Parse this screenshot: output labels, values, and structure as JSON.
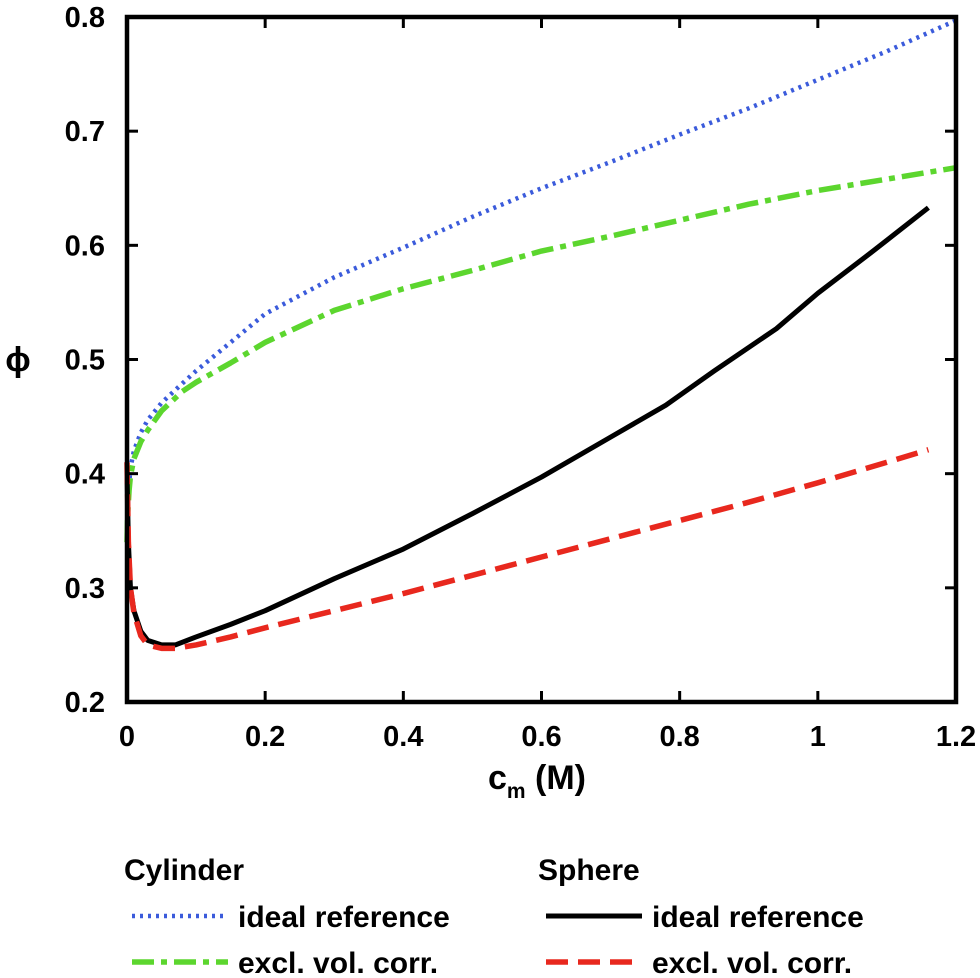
{
  "chart_data": {
    "type": "line",
    "title": "",
    "xlabel": {
      "main": "c",
      "sub": "m",
      "unit": " (M)"
    },
    "ylabel": "ϕ",
    "xlim": [
      0,
      1.2
    ],
    "ylim": [
      0.2,
      0.8
    ],
    "xticks": [
      0,
      0.2,
      0.4,
      0.6,
      0.8,
      1,
      1.2
    ],
    "xtick_labels": [
      "0",
      "0.2",
      "0.4",
      "0.6",
      "0.8",
      "1",
      "1.2"
    ],
    "yticks": [
      0.2,
      0.3,
      0.4,
      0.5,
      0.6,
      0.7,
      0.8
    ],
    "ytick_labels": [
      "0.2",
      "0.3",
      "0.4",
      "0.5",
      "0.6",
      "0.7",
      "0.8"
    ],
    "grid": false,
    "legend_position": "bottom",
    "legend_groups": [
      {
        "title": "Cylinder",
        "entries": [
          "ideal reference",
          "excl. vol. corr."
        ]
      },
      {
        "title": "Sphere",
        "entries": [
          "ideal reference",
          "excl. vol. corr."
        ]
      }
    ],
    "series": [
      {
        "group": "Cylinder",
        "label": "ideal reference",
        "color": "#3b5bdb",
        "style": "dotted",
        "x": [
          0.0,
          0.001,
          0.003,
          0.005,
          0.01,
          0.02,
          0.03,
          0.05,
          0.08,
          0.1,
          0.15,
          0.2,
          0.3,
          0.4,
          0.5,
          0.6,
          0.7,
          0.8,
          0.9,
          1.0,
          1.1,
          1.2
        ],
        "y": [
          0.34,
          0.37,
          0.39,
          0.405,
          0.42,
          0.436,
          0.447,
          0.462,
          0.479,
          0.49,
          0.515,
          0.54,
          0.572,
          0.598,
          0.625,
          0.65,
          0.673,
          0.697,
          0.72,
          0.745,
          0.77,
          0.797
        ]
      },
      {
        "group": "Cylinder",
        "label": "excl. vol. corr.",
        "color": "#5cd62e",
        "style": "dashdot",
        "x": [
          0.0,
          0.001,
          0.003,
          0.005,
          0.01,
          0.02,
          0.03,
          0.05,
          0.08,
          0.1,
          0.15,
          0.2,
          0.3,
          0.4,
          0.5,
          0.6,
          0.7,
          0.8,
          0.9,
          1.0,
          1.1,
          1.2
        ],
        "y": [
          0.34,
          0.365,
          0.385,
          0.398,
          0.413,
          0.428,
          0.438,
          0.455,
          0.472,
          0.48,
          0.497,
          0.515,
          0.543,
          0.562,
          0.578,
          0.595,
          0.608,
          0.622,
          0.636,
          0.648,
          0.658,
          0.668
        ]
      },
      {
        "group": "Sphere",
        "label": "ideal reference",
        "color": "#000000",
        "style": "solid",
        "x": [
          0.0,
          0.002,
          0.005,
          0.01,
          0.02,
          0.03,
          0.05,
          0.07,
          0.1,
          0.15,
          0.2,
          0.3,
          0.4,
          0.5,
          0.6,
          0.7,
          0.78,
          0.85,
          0.94,
          1.0,
          1.08,
          1.16
        ],
        "y": [
          0.4,
          0.34,
          0.3,
          0.28,
          0.262,
          0.254,
          0.25,
          0.25,
          0.257,
          0.268,
          0.28,
          0.308,
          0.334,
          0.365,
          0.397,
          0.432,
          0.46,
          0.49,
          0.527,
          0.558,
          0.595,
          0.633
        ]
      },
      {
        "group": "Sphere",
        "label": "excl. vol. corr.",
        "color": "#e8281e",
        "style": "dashed",
        "x": [
          0.0,
          0.002,
          0.005,
          0.01,
          0.02,
          0.03,
          0.05,
          0.07,
          0.1,
          0.15,
          0.2,
          0.3,
          0.4,
          0.5,
          0.6,
          0.7,
          0.8,
          0.9,
          1.0,
          1.1,
          1.16
        ],
        "y": [
          0.41,
          0.34,
          0.3,
          0.278,
          0.258,
          0.25,
          0.247,
          0.247,
          0.25,
          0.257,
          0.265,
          0.28,
          0.295,
          0.311,
          0.327,
          0.343,
          0.359,
          0.375,
          0.392,
          0.41,
          0.421
        ]
      }
    ]
  }
}
